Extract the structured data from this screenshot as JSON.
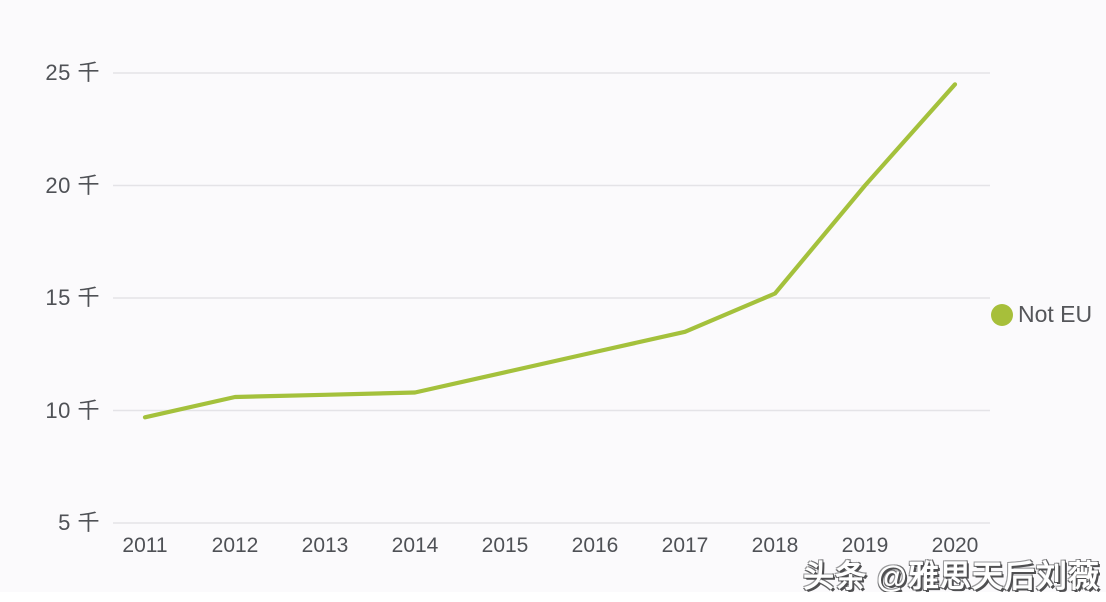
{
  "chart_data": {
    "type": "line",
    "title": "",
    "xlabel": "",
    "ylabel": "",
    "unit": "千",
    "x": [
      2011,
      2012,
      2013,
      2014,
      2015,
      2016,
      2017,
      2018,
      2019,
      2020
    ],
    "series": [
      {
        "name": "Not EU",
        "color": "#a4c13c",
        "values": [
          9.7,
          10.6,
          10.7,
          10.8,
          11.7,
          12.6,
          13.5,
          15.2,
          20.0,
          24.5
        ]
      }
    ],
    "yticks": [
      {
        "value": 5,
        "label": "5 千"
      },
      {
        "value": 10,
        "label": "10 千"
      },
      {
        "value": 15,
        "label": "15 千"
      },
      {
        "value": 20,
        "label": "20 千"
      },
      {
        "value": 25,
        "label": "25 千"
      }
    ],
    "ylim": [
      5,
      25
    ],
    "grid": "horizontal",
    "legend_position": "right"
  },
  "legend": {
    "label": "Not EU"
  },
  "watermark": {
    "text": "头条 @雅思天后刘薇"
  },
  "colors": {
    "line": "#a4c13c",
    "legend_dot": "#a7bf3a",
    "grid": "#e4e3e7",
    "tick_text": "#4f5156",
    "background": "#fbfafc"
  }
}
